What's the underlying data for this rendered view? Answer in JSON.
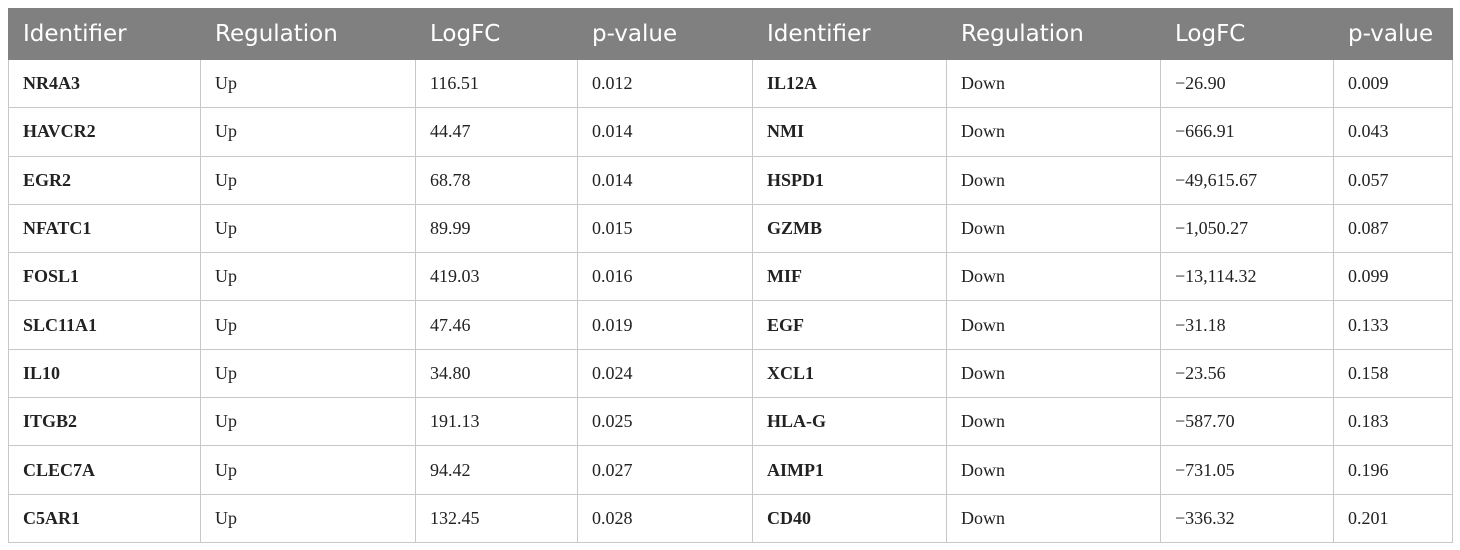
{
  "table": {
    "header": [
      "Identifier",
      "Regulation",
      "LogFC",
      "p-value",
      "Identifier",
      "Regulation",
      "LogFC",
      "p-value"
    ],
    "rows": [
      [
        "NR4A3",
        "Up",
        "116.51",
        "0.012",
        "IL12A",
        "Down",
        "−26.90",
        "0.009"
      ],
      [
        "HAVCR2",
        "Up",
        "44.47",
        "0.014",
        "NMI",
        "Down",
        "−666.91",
        "0.043"
      ],
      [
        "EGR2",
        "Up",
        "68.78",
        "0.014",
        "HSPD1",
        "Down",
        "−49,615.67",
        "0.057"
      ],
      [
        "NFATC1",
        "Up",
        "89.99",
        "0.015",
        "GZMB",
        "Down",
        "−1,050.27",
        "0.087"
      ],
      [
        "FOSL1",
        "Up",
        "419.03",
        "0.016",
        "MIF",
        "Down",
        "−13,114.32",
        "0.099"
      ],
      [
        "SLC11A1",
        "Up",
        "47.46",
        "0.019",
        "EGF",
        "Down",
        "−31.18",
        "0.133"
      ],
      [
        "IL10",
        "Up",
        "34.80",
        "0.024",
        "XCL1",
        "Down",
        "−23.56",
        "0.158"
      ],
      [
        "ITGB2",
        "Up",
        "191.13",
        "0.025",
        "HLA-G",
        "Down",
        "−587.70",
        "0.183"
      ],
      [
        "CLEC7A",
        "Up",
        "94.42",
        "0.027",
        "AIMP1",
        "Down",
        "−731.05",
        "0.196"
      ],
      [
        "C5AR1",
        "Up",
        "132.45",
        "0.028",
        "CD40",
        "Down",
        "−336.32",
        "0.201"
      ]
    ]
  }
}
